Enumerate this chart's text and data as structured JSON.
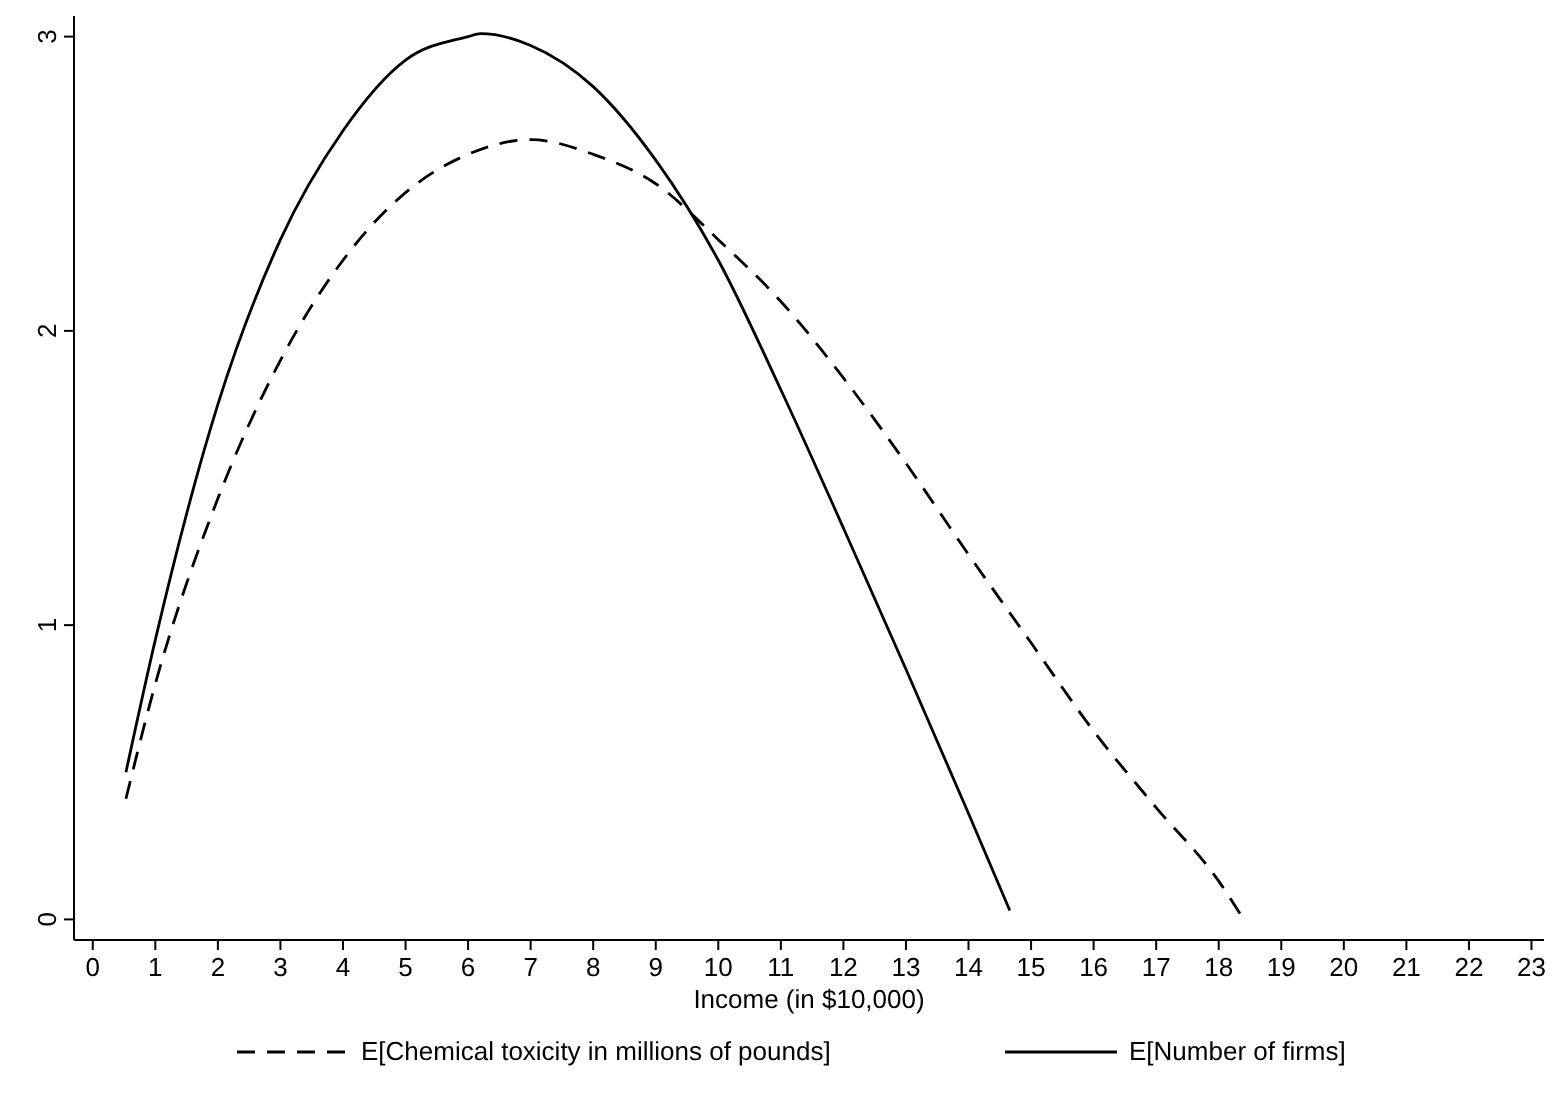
{
  "chart_data": {
    "type": "line",
    "xlabel": "Income (in $10,000)",
    "xlim": [
      -0.3,
      23.2
    ],
    "xticks": [
      0,
      1,
      2,
      3,
      4,
      5,
      6,
      7,
      8,
      9,
      10,
      11,
      12,
      13,
      14,
      15,
      16,
      17,
      18,
      19,
      20,
      21,
      22,
      23
    ],
    "ylim": [
      -0.07,
      3.07
    ],
    "yticks": [
      0,
      1,
      2,
      3
    ],
    "grid": false,
    "legend": "bottom",
    "marker": "none",
    "series": [
      {
        "name": "E[Chemical toxicity in millions of pounds]",
        "color": "#000000",
        "line_style": "dashed",
        "x": [
          0.53,
          1,
          2,
          3,
          4,
          5,
          6,
          7,
          8,
          9,
          10,
          11,
          12,
          13,
          14,
          15,
          16,
          17,
          18,
          18.34
        ],
        "values": [
          0.41,
          0.8,
          1.43,
          1.9,
          2.24,
          2.47,
          2.6,
          2.65,
          2.6,
          2.5,
          2.31,
          2.1,
          1.84,
          1.55,
          1.24,
          0.94,
          0.64,
          0.38,
          0.13,
          0.02
        ]
      },
      {
        "name": "E[Number of firms]",
        "color": "#000000",
        "line_style": "solid",
        "x": [
          0.53,
          1,
          2,
          3,
          4,
          5,
          6,
          6.2,
          7,
          8,
          9,
          10,
          11,
          12,
          13,
          14,
          14.66
        ],
        "values": [
          0.5,
          0.95,
          1.75,
          2.31,
          2.68,
          2.92,
          3,
          3.01,
          2.97,
          2.83,
          2.58,
          2.24,
          1.8,
          1.33,
          0.85,
          0.36,
          0.03
        ]
      }
    ]
  }
}
